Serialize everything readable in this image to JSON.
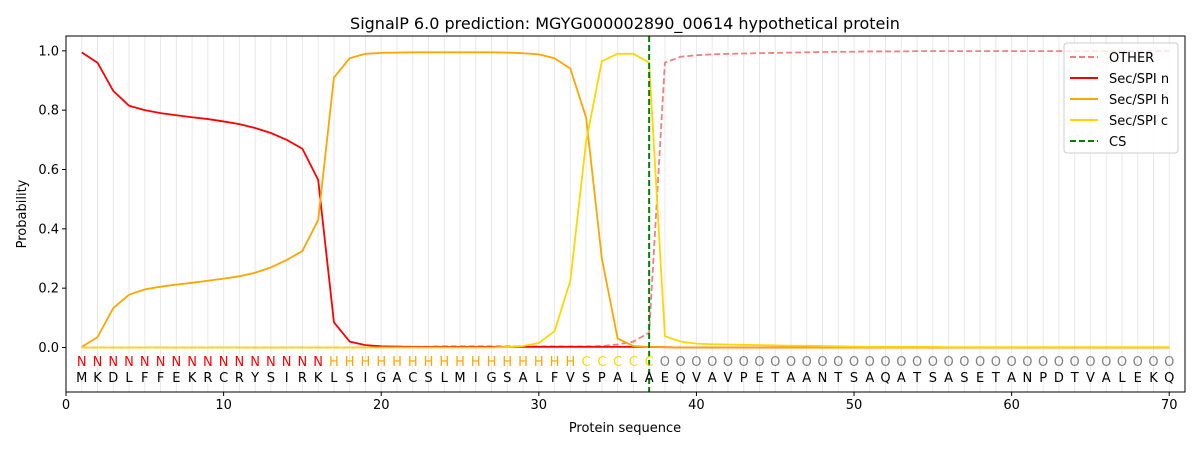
{
  "chart_data": {
    "type": "line",
    "title": "SignalP 6.0 prediction: MGYG000002890_00614 hypothetical protein",
    "xlabel": "Protein sequence",
    "ylabel": "Probability",
    "xlim": [
      0,
      71
    ],
    "ylim": [
      -0.15,
      1.05
    ],
    "x_ticks": [
      0,
      10,
      20,
      30,
      40,
      50,
      60,
      70
    ],
    "y_ticks": [
      "0.0",
      "0.2",
      "0.4",
      "0.6",
      "0.8",
      "1.0"
    ],
    "grid": "vertical lines at each residue",
    "legend_position": "top-right",
    "sequence": [
      "M",
      "K",
      "D",
      "L",
      "F",
      "F",
      "E",
      "K",
      "R",
      "C",
      "R",
      "Y",
      "S",
      "I",
      "R",
      "K",
      "L",
      "S",
      "I",
      "G",
      "A",
      "C",
      "S",
      "L",
      "M",
      "I",
      "G",
      "S",
      "A",
      "L",
      "F",
      "V",
      "S",
      "P",
      "A",
      "L",
      "A",
      "E",
      "Q",
      "V",
      "A",
      "V",
      "P",
      "E",
      "T",
      "A",
      "A",
      "N",
      "T",
      "S",
      "A",
      "Q",
      "A",
      "T",
      "S",
      "A",
      "S",
      "E",
      "T",
      "A",
      "N",
      "P",
      "D",
      "T",
      "V",
      "A",
      "L",
      "E",
      "K",
      "Q"
    ],
    "region_labels": [
      "N",
      "N",
      "N",
      "N",
      "N",
      "N",
      "N",
      "N",
      "N",
      "N",
      "N",
      "N",
      "N",
      "N",
      "N",
      "N",
      "H",
      "H",
      "H",
      "H",
      "H",
      "H",
      "H",
      "H",
      "H",
      "H",
      "H",
      "H",
      "H",
      "H",
      "H",
      "H",
      "C",
      "C",
      "C",
      "C",
      "C",
      "O",
      "O",
      "O",
      "O",
      "O",
      "O",
      "O",
      "O",
      "O",
      "O",
      "O",
      "O",
      "O",
      "O",
      "O",
      "O",
      "O",
      "O",
      "O",
      "O",
      "O",
      "O",
      "O",
      "O",
      "O",
      "O",
      "O",
      "O",
      "O",
      "O",
      "O",
      "O",
      "O"
    ],
    "region_colors": {
      "N": "#ff0000",
      "H": "#ffa500",
      "C": "#ffd700",
      "O": "#808080"
    },
    "series": [
      {
        "name": "OTHER",
        "color": "#f08080",
        "dash": "dashed",
        "values": [
          0,
          0,
          0,
          0,
          0,
          0,
          0,
          0,
          0,
          0,
          0,
          0,
          0,
          0,
          0,
          0,
          0,
          0,
          0,
          0.002,
          0.003,
          0.003,
          0.003,
          0.004,
          0.004,
          0.004,
          0.004,
          0.004,
          0.004,
          0.004,
          0.004,
          0.004,
          0.004,
          0.005,
          0.01,
          0.02,
          0.05,
          0.96,
          0.98,
          0.985,
          0.988,
          0.99,
          0.991,
          0.992,
          0.993,
          0.994,
          0.995,
          0.996,
          0.997,
          0.997,
          0.998,
          0.998,
          0.998,
          0.999,
          0.999,
          0.999,
          0.999,
          0.999,
          0.999,
          0.999,
          0.999,
          0.999,
          0.999,
          0.999,
          0.999,
          0.999,
          0.999,
          0.999,
          0.999,
          0.999
        ]
      },
      {
        "name": "Sec/SPI n",
        "color": "#ff0000",
        "dash": "solid",
        "values": [
          0.995,
          0.96,
          0.865,
          0.815,
          0.8,
          0.79,
          0.783,
          0.776,
          0.77,
          0.762,
          0.753,
          0.74,
          0.723,
          0.7,
          0.67,
          0.565,
          0.085,
          0.02,
          0.008,
          0.004,
          0.003,
          0.002,
          0.002,
          0.002,
          0.002,
          0.002,
          0.002,
          0.002,
          0.002,
          0.002,
          0.002,
          0.002,
          0.002,
          0.002,
          0.002,
          0.002,
          0.002,
          0.001,
          0,
          0,
          0,
          0,
          0,
          0,
          0,
          0,
          0,
          0,
          0,
          0,
          0,
          0,
          0,
          0,
          0,
          0,
          0,
          0,
          0,
          0,
          0,
          0,
          0,
          0,
          0,
          0,
          0,
          0,
          0,
          0
        ]
      },
      {
        "name": "Sec/SPI h",
        "color": "#ffa500",
        "dash": "solid",
        "values": [
          0.002,
          0.035,
          0.133,
          0.178,
          0.196,
          0.205,
          0.212,
          0.218,
          0.225,
          0.232,
          0.24,
          0.252,
          0.27,
          0.295,
          0.325,
          0.43,
          0.91,
          0.975,
          0.99,
          0.993,
          0.994,
          0.995,
          0.995,
          0.995,
          0.995,
          0.995,
          0.995,
          0.994,
          0.992,
          0.988,
          0.975,
          0.94,
          0.775,
          0.3,
          0.03,
          0.005,
          0.002,
          0.001,
          0,
          0,
          0,
          0,
          0,
          0,
          0,
          0,
          0,
          0,
          0,
          0,
          0,
          0,
          0,
          0,
          0,
          0,
          0,
          0,
          0,
          0,
          0,
          0,
          0,
          0,
          0,
          0,
          0,
          0,
          0,
          0
        ]
      },
      {
        "name": "Sec/SPI c",
        "color": "#ffd700",
        "dash": "solid",
        "values": [
          0,
          0,
          0,
          0,
          0,
          0,
          0,
          0,
          0,
          0,
          0,
          0,
          0,
          0,
          0,
          0,
          0,
          0,
          0,
          0,
          0,
          0,
          0,
          0,
          0,
          0,
          0,
          0.002,
          0.005,
          0.015,
          0.055,
          0.225,
          0.695,
          0.965,
          0.99,
          0.99,
          0.96,
          0.038,
          0.02,
          0.013,
          0.011,
          0.01,
          0.009,
          0.008,
          0.007,
          0.006,
          0.006,
          0.005,
          0.004,
          0.003,
          0.002,
          0.002,
          0.002,
          0.002,
          0.002,
          0.001,
          0.001,
          0.001,
          0.001,
          0.001,
          0.001,
          0.001,
          0.001,
          0.001,
          0.001,
          0.001,
          0.001,
          0.001,
          0.001,
          0.001
        ]
      },
      {
        "name": "CS",
        "color": "#008000",
        "dash": "dashed",
        "x": 37
      }
    ]
  }
}
